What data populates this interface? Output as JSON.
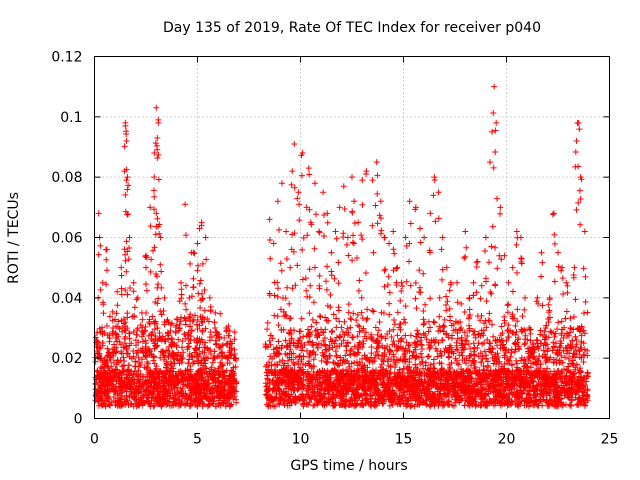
{
  "chart_data": {
    "type": "scatter",
    "title": "Day 135 of 2019, Rate Of TEC Index for receiver p040",
    "xlabel": "GPS time / hours",
    "ylabel": "ROTI / TECUs",
    "xlim": [
      0,
      25
    ],
    "ylim": [
      0,
      0.12
    ],
    "x_ticks": [
      0,
      5,
      10,
      15,
      20,
      25
    ],
    "x_tick_labels": [
      "0",
      "5",
      "10",
      "15",
      "20",
      "25"
    ],
    "y_ticks": [
      0,
      0.02,
      0.04,
      0.06,
      0.08,
      0.1,
      0.12
    ],
    "y_tick_labels": [
      "0",
      "0.02",
      "0.04",
      "0.06",
      "0.08",
      "0.1",
      "0.12"
    ],
    "grid": true,
    "marker": "+",
    "marker_color": "#ff0000",
    "data_gap_hours": [
      6.9,
      8.3
    ],
    "series": [
      {
        "x": [
          0.1,
          0.3,
          0.5,
          0.7,
          0.9,
          1.1,
          1.3,
          1.5,
          1.55,
          1.6,
          1.7,
          1.9,
          2.1,
          2.3,
          2.5,
          2.7,
          2.9,
          3.0,
          3.1,
          3.2,
          3.4,
          3.6,
          3.8,
          4.0,
          4.2,
          4.4,
          4.6,
          4.8,
          5.0,
          5.2,
          5.4,
          5.6,
          5.8,
          6.0,
          6.2,
          6.4,
          6.6,
          6.8,
          0.2,
          0.25,
          0.4,
          0.6,
          1.5,
          1.55,
          2.5,
          2.9,
          3.0,
          3.05,
          3.1,
          4.4,
          4.7,
          5.0,
          5.1,
          5.2,
          8.5,
          8.7,
          8.9,
          9.1,
          9.3,
          9.5,
          9.6,
          9.7,
          9.9,
          10.1,
          10.3,
          10.4,
          10.5,
          10.7,
          10.9,
          11.1,
          11.3,
          11.5,
          11.7,
          11.9,
          12.1,
          12.3,
          12.5,
          12.6,
          12.8,
          13.0,
          13.2,
          13.5,
          13.7,
          13.9,
          14.1,
          14.3,
          14.5,
          14.7,
          14.9,
          15.1,
          15.3,
          15.6,
          15.8,
          16.0,
          16.3,
          16.5,
          16.7,
          16.9,
          17.1,
          17.3,
          17.6,
          17.8,
          18.0,
          18.2,
          18.4,
          18.6,
          18.8,
          19.0,
          19.2,
          19.3,
          19.4,
          19.5,
          19.7,
          19.9,
          20.1,
          20.3,
          20.5,
          20.7,
          20.9,
          21.1,
          21.3,
          21.5,
          21.7,
          21.9,
          22.1,
          22.3,
          22.5,
          22.7,
          22.9,
          23.1,
          23.3,
          23.4,
          23.5,
          23.6,
          23.8
        ],
        "y": [
          0.026,
          0.02,
          0.018,
          0.022,
          0.03,
          0.042,
          0.05,
          0.098,
          0.092,
          0.08,
          0.06,
          0.045,
          0.04,
          0.035,
          0.05,
          0.07,
          0.08,
          0.103,
          0.099,
          0.06,
          0.04,
          0.028,
          0.025,
          0.033,
          0.045,
          0.071,
          0.04,
          0.055,
          0.058,
          0.065,
          0.06,
          0.04,
          0.02,
          0.028,
          0.022,
          0.03,
          0.025,
          0.02,
          0.068,
          0.06,
          0.045,
          0.056,
          0.097,
          0.079,
          0.054,
          0.088,
          0.068,
          0.093,
          0.098,
          0.038,
          0.055,
          0.049,
          0.063,
          0.064,
          0.066,
          0.058,
          0.072,
          0.078,
          0.062,
          0.05,
          0.082,
          0.091,
          0.075,
          0.088,
          0.07,
          0.083,
          0.065,
          0.078,
          0.062,
          0.075,
          0.068,
          0.055,
          0.062,
          0.07,
          0.077,
          0.06,
          0.08,
          0.072,
          0.065,
          0.079,
          0.082,
          0.079,
          0.085,
          0.072,
          0.06,
          0.058,
          0.062,
          0.05,
          0.045,
          0.06,
          0.072,
          0.07,
          0.063,
          0.06,
          0.068,
          0.08,
          0.075,
          0.06,
          0.05,
          0.045,
          0.045,
          0.038,
          0.062,
          0.04,
          0.045,
          0.052,
          0.044,
          0.06,
          0.085,
          0.095,
          0.11,
          0.098,
          0.07,
          0.054,
          0.045,
          0.05,
          0.062,
          0.06,
          0.04,
          0.03,
          0.025,
          0.04,
          0.055,
          0.03,
          0.04,
          0.068,
          0.055,
          0.05,
          0.045,
          0.03,
          0.05,
          0.092,
          0.098,
          0.08,
          0.062
        ]
      }
    ]
  }
}
